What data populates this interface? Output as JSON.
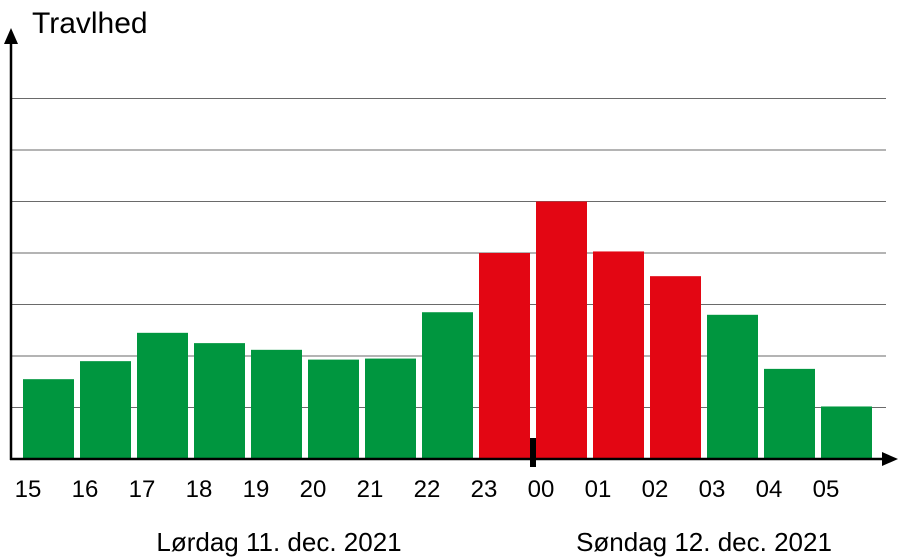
{
  "chart_data": {
    "type": "bar",
    "ylabel": "Travlhed",
    "xlabel": "",
    "title": "",
    "categories": [
      "15",
      "16",
      "17",
      "18",
      "19",
      "20",
      "21",
      "22",
      "23",
      "00",
      "01",
      "02",
      "03",
      "04",
      "05"
    ],
    "values": [
      1.55,
      1.9,
      2.45,
      2.25,
      2.12,
      1.93,
      1.95,
      2.85,
      4.0,
      5.0,
      4.03,
      3.55,
      2.8,
      1.75,
      1.02
    ],
    "bar_colors": [
      "#00963f",
      "#00963f",
      "#00963f",
      "#00963f",
      "#00963f",
      "#00963f",
      "#00963f",
      "#00963f",
      "#e30613",
      "#e30613",
      "#e30613",
      "#e30613",
      "#00963f",
      "#00963f",
      "#00963f"
    ],
    "ylim": [
      0,
      7
    ],
    "y_gridlines": [
      1,
      2,
      3,
      4,
      5,
      6,
      7
    ],
    "y_tick_labels_shown": false,
    "grid": true,
    "legend": "none",
    "day_labels": [
      {
        "label": "Lørdag 11. dec. 2021",
        "category_start": "15",
        "category_end": "23"
      },
      {
        "label": "Søndag 12. dec. 2021",
        "category_start": "00",
        "category_end": "05"
      }
    ],
    "day_separator_at": "00"
  }
}
